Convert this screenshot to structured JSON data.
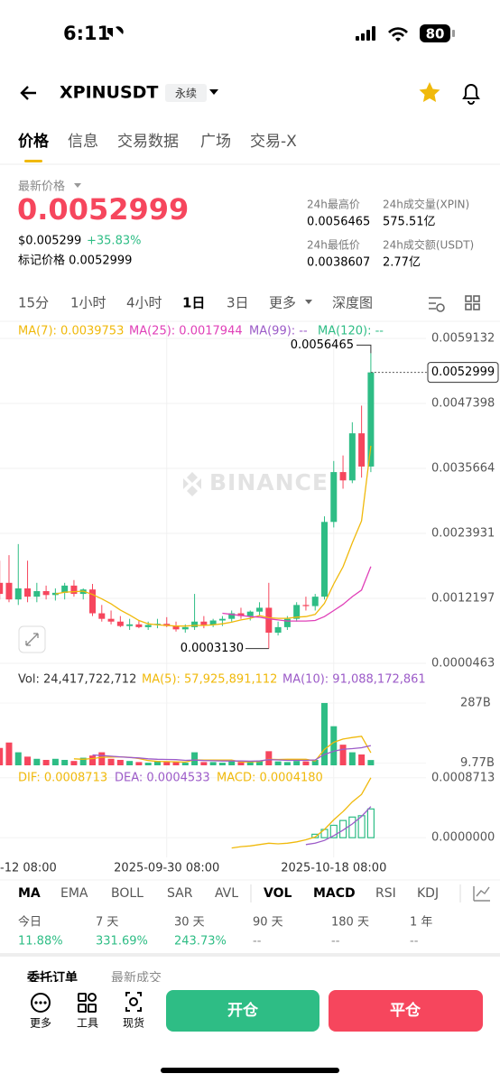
{
  "status_bar": {
    "time": "6:11",
    "battery": "80"
  },
  "header": {
    "symbol": "XPINUSDT",
    "contract": "永续"
  },
  "tabs": [
    "价格",
    "信息",
    "交易数据",
    "广场",
    "交易-X"
  ],
  "price": {
    "label": "最新价格",
    "last": "0.0052999",
    "usd": "$0.005299",
    "change": "+35.83%",
    "mark_label": "标记价格 0.0052999"
  },
  "stats": [
    {
      "label": "24h最高价",
      "value": "0.0056465"
    },
    {
      "label": "24h成交量(XPIN)",
      "value": "575.51亿"
    },
    {
      "label": "24h最低价",
      "value": "0.0038607"
    },
    {
      "label": "24h成交额(USDT)",
      "value": "2.77亿"
    }
  ],
  "intervals": [
    "15分",
    "1小时",
    "4小时",
    "1日",
    "3日",
    "更多",
    "深度图"
  ],
  "chart_data": {
    "type": "candlestick",
    "watermark": "BINANCE",
    "categories": [
      "-12 08:00",
      null,
      null,
      null,
      null,
      null,
      null,
      null,
      null,
      null,
      null,
      null,
      null,
      null,
      null,
      null,
      null,
      null,
      "2025-09-30 08:00",
      null,
      null,
      null,
      null,
      null,
      null,
      null,
      null,
      null,
      null,
      null,
      null,
      null,
      null,
      null,
      null,
      null,
      "2025-10-18 08:00",
      null,
      null,
      null,
      null
    ],
    "ylim": [
      4.63e-05,
      0.0059132
    ],
    "yticks": [
      0.0059132,
      0.0047398,
      0.0035664,
      0.0023931,
      0.0012197,
      4.63e-05
    ],
    "ohlc": [
      [
        0.0015,
        0.0019,
        0.0012,
        0.0013
      ],
      [
        0.0015,
        0.002,
        0.00115,
        0.0012
      ],
      [
        0.0012,
        0.0022,
        0.0011,
        0.0014
      ],
      [
        0.0014,
        0.0019,
        0.00115,
        0.00125
      ],
      [
        0.00125,
        0.0015,
        0.00115,
        0.00135
      ],
      [
        0.00135,
        0.00145,
        0.0012,
        0.00128
      ],
      [
        0.00128,
        0.0014,
        0.00118,
        0.00132
      ],
      [
        0.00132,
        0.0015,
        0.0012,
        0.00145
      ],
      [
        0.00145,
        0.00155,
        0.00125,
        0.0013
      ],
      [
        0.0013,
        0.0014,
        0.0012,
        0.00138
      ],
      [
        0.00138,
        0.00148,
        0.0009,
        0.00095
      ],
      [
        0.00095,
        0.0011,
        0.0008,
        0.00085
      ],
      [
        0.00085,
        0.001,
        0.00075,
        0.0008
      ],
      [
        0.0008,
        0.0009,
        0.0007,
        0.00072
      ],
      [
        0.00072,
        0.00085,
        0.00065,
        0.00075
      ],
      [
        0.00075,
        0.00082,
        0.00068,
        0.0007
      ],
      [
        0.0007,
        0.0008,
        0.00065,
        0.00074
      ],
      [
        0.00074,
        0.00085,
        0.00068,
        0.00076
      ],
      [
        0.00076,
        0.00088,
        0.0007,
        0.00072
      ],
      [
        0.00072,
        0.0008,
        0.00062,
        0.00066
      ],
      [
        0.00066,
        0.00075,
        0.0006,
        0.0007
      ],
      [
        0.0007,
        0.0013,
        0.00065,
        0.0008
      ],
      [
        0.0008,
        0.0009,
        0.00068,
        0.00074
      ],
      [
        0.00074,
        0.00085,
        0.0007,
        0.00082
      ],
      [
        0.00082,
        0.0009,
        0.00072,
        0.00085
      ],
      [
        0.00085,
        0.001,
        0.0008,
        0.00095
      ],
      [
        0.00095,
        0.00105,
        0.00085,
        0.0009
      ],
      [
        0.0009,
        0.001,
        0.00082,
        0.00098
      ],
      [
        0.00098,
        0.00115,
        0.0009,
        0.00105
      ],
      [
        0.00105,
        0.0015,
        0.000313,
        0.0006
      ],
      [
        0.0006,
        0.0008,
        0.00055,
        0.0007
      ],
      [
        0.0007,
        0.0009,
        0.00065,
        0.00085
      ],
      [
        0.00085,
        0.00115,
        0.0008,
        0.0011
      ],
      [
        0.0011,
        0.00125,
        0.001,
        0.00108
      ],
      [
        0.00108,
        0.0013,
        0.001,
        0.00125
      ],
      [
        0.00125,
        0.0027,
        0.0012,
        0.0026
      ],
      [
        0.0026,
        0.0037,
        0.0025,
        0.0035
      ],
      [
        0.0035,
        0.0038,
        0.0032,
        0.00335
      ],
      [
        0.00335,
        0.0044,
        0.0033,
        0.0042
      ],
      [
        0.0042,
        0.0047,
        0.0034,
        0.0036
      ],
      [
        0.0036,
        0.0056465,
        0.0035,
        0.0052999
      ]
    ],
    "series": [
      {
        "name": "MA(7): 0.0039753",
        "color": "#f0b90b",
        "values": [
          null,
          null,
          null,
          null,
          null,
          null,
          0.0013,
          0.00133,
          0.00134,
          0.00135,
          0.00129,
          0.00121,
          0.00112,
          0.00101,
          0.00092,
          0.00082,
          0.00076,
          0.00074,
          0.00073,
          0.00072,
          0.00072,
          0.00073,
          0.00073,
          0.00074,
          0.00076,
          0.00079,
          0.00083,
          0.00086,
          0.00091,
          0.00087,
          0.00086,
          0.00086,
          0.00088,
          0.00089,
          0.00093,
          0.00113,
          0.00148,
          0.00179,
          0.00222,
          0.00262,
          0.0039753
        ]
      },
      {
        "name": "MA(25): 0.0017944",
        "color": "#e040b8",
        "values": [
          null,
          null,
          null,
          null,
          null,
          null,
          null,
          null,
          null,
          null,
          null,
          null,
          null,
          null,
          null,
          null,
          null,
          null,
          null,
          null,
          null,
          null,
          null,
          null,
          0.00095,
          0.00093,
          0.00091,
          0.00089,
          0.00088,
          0.00085,
          0.00083,
          0.00081,
          0.00081,
          0.00081,
          0.00082,
          0.00089,
          0.001,
          0.00111,
          0.00125,
          0.00137,
          0.0017944
        ]
      },
      {
        "name": "MA(99): --",
        "color": "#9c5bc8"
      },
      {
        "name": "MA(120): --",
        "color": "#2ebd85"
      }
    ],
    "high_label": {
      "value": 0.0056465,
      "label": "0.0056465"
    },
    "low_label": {
      "value": 0.000313,
      "label": "0.0003130"
    },
    "last_label": {
      "value": 0.0052999,
      "label": "0.0052999"
    },
    "volume": {
      "ylim": [
        0,
        320000000000
      ],
      "yticks": [
        {
          "value": 287000000000,
          "label": "287B"
        },
        {
          "value": 9770000000,
          "label": "9.77B"
        }
      ],
      "values": [
        80000000000.0,
        105000000000.0,
        60000000000.0,
        40000000000.0,
        30000000000.0,
        25000000000.0,
        30000000000.0,
        25000000000.0,
        20000000000.0,
        35000000000.0,
        45000000000.0,
        60000000000.0,
        30000000000.0,
        25000000000.0,
        20000000000.0,
        15000000000.0,
        12000000000.0,
        20000000000.0,
        18000000000.0,
        15000000000.0,
        12000000000.0,
        60000000000.0,
        15000000000.0,
        15000000000.0,
        12000000000.0,
        18000000000.0,
        14000000000.0,
        20000000000.0,
        22000000000.0,
        65000000000.0,
        18000000000.0,
        15000000000.0,
        20000000000.0,
        18000000000.0,
        25000000000.0,
        287000000000.0,
        180000000000.0,
        95000000000.0,
        60000000000.0,
        50000000000.0,
        24417722712
      ],
      "legend": "Vol: 24,417,722,712",
      "series": [
        {
          "name": "MA(5): 57,925,891,112",
          "color": "#f0b90b",
          "values": [
            null,
            null,
            null,
            null,
            null,
            null,
            null,
            null,
            30000000000.0,
            28000000000.0,
            31000000000.0,
            37000000000.0,
            38000000000.0,
            39000000000.0,
            37000000000.0,
            31000000000.0,
            22000000000.0,
            18000000000.0,
            17000000000.0,
            16000000000.0,
            15000000000.0,
            25000000000.0,
            24000000000.0,
            24000000000.0,
            24000000000.0,
            24000000000.0,
            15000000000.0,
            16000000000.0,
            17000000000.0,
            28000000000.0,
            27000000000.0,
            28000000000.0,
            28000000000.0,
            28000000000.0,
            20000000000.0,
            73000000000.0,
            106000000000.0,
            121000000000.0,
            128000000000.0,
            134000000000.0,
            57925891112
          ]
        },
        {
          "name": "MA(10): 91,088,172,861",
          "color": "#9c5bc8",
          "values": [
            null,
            null,
            null,
            null,
            null,
            null,
            null,
            null,
            null,
            null,
            48000000000.0,
            45000000000.0,
            42000000000.0,
            39000000000.0,
            36000000000.0,
            34000000000.0,
            30000000000.0,
            28000000000.0,
            27000000000.0,
            26000000000.0,
            23000000000.0,
            24000000000.0,
            22000000000.0,
            21000000000.0,
            20000000000.0,
            20000000000.0,
            20000000000.0,
            19000000000.0,
            20000000000.0,
            26000000000.0,
            25000000000.0,
            23000000000.0,
            23000000000.0,
            23000000000.0,
            25000000000.0,
            50000000000.0,
            65000000000.0,
            74000000000.0,
            77000000000.0,
            81000000000.0,
            91088172861
          ]
        }
      ]
    },
    "macd": {
      "ylim": [
        -0.00026,
        0.001
      ],
      "yticks": [
        0.0008713,
        {
          "value": 0,
          "label": "0.0000000"
        }
      ],
      "series": [
        {
          "name": "DIF: 0.0008713",
          "color": "#f0b90b",
          "values": [
            null,
            null,
            null,
            null,
            null,
            null,
            null,
            null,
            null,
            null,
            null,
            null,
            null,
            null,
            null,
            null,
            null,
            null,
            null,
            null,
            null,
            null,
            null,
            null,
            null,
            -0.00015,
            -0.00013,
            -0.00012,
            -0.0001,
            -8e-05,
            -9e-05,
            -8e-05,
            -6e-05,
            -3e-05,
            1e-05,
            0.00012,
            0.00026,
            0.00038,
            0.00052,
            0.00063,
            0.0008713
          ]
        },
        {
          "name": "DEA: 0.0004533",
          "color": "#9c5bc8",
          "values": [
            null,
            null,
            null,
            null,
            null,
            null,
            null,
            null,
            null,
            null,
            null,
            null,
            null,
            null,
            null,
            null,
            null,
            null,
            null,
            null,
            null,
            null,
            null,
            null,
            null,
            null,
            null,
            null,
            null,
            null,
            null,
            null,
            null,
            -0.0001,
            -8e-05,
            -4e-05,
            3e-05,
            0.00011,
            0.0002,
            0.00031,
            0.0004533
          ]
        }
      ],
      "histogram": {
        "name": "MACD: 0.0004180",
        "color": "#2ebd85",
        "values": [
          null,
          null,
          null,
          null,
          null,
          null,
          null,
          null,
          null,
          null,
          null,
          null,
          null,
          null,
          null,
          null,
          null,
          null,
          null,
          null,
          null,
          null,
          null,
          null,
          null,
          null,
          null,
          null,
          null,
          null,
          null,
          null,
          null,
          null,
          5e-05,
          0.00012,
          0.00018,
          0.00025,
          0.0003,
          0.00032,
          0.000418
        ]
      }
    }
  },
  "indicators": {
    "main": [
      "MA",
      "EMA",
      "BOLL",
      "SAR",
      "AVL"
    ],
    "sub": [
      "VOL",
      "MACD",
      "RSI",
      "KDJ"
    ]
  },
  "performance": [
    {
      "period": "今日",
      "value": "11.88%"
    },
    {
      "period": "7 天",
      "value": "331.69%"
    },
    {
      "period": "30 天",
      "value": "243.73%"
    },
    {
      "period": "90 天",
      "value": "--"
    },
    {
      "period": "180 天",
      "value": "--"
    },
    {
      "period": "1 年",
      "value": "--"
    }
  ],
  "order_tabs": [
    "委托订单",
    "最新成交"
  ],
  "bottom_bar": {
    "tools": [
      "更多",
      "工具",
      "现货"
    ],
    "open": "开仓",
    "close": "平仓"
  }
}
